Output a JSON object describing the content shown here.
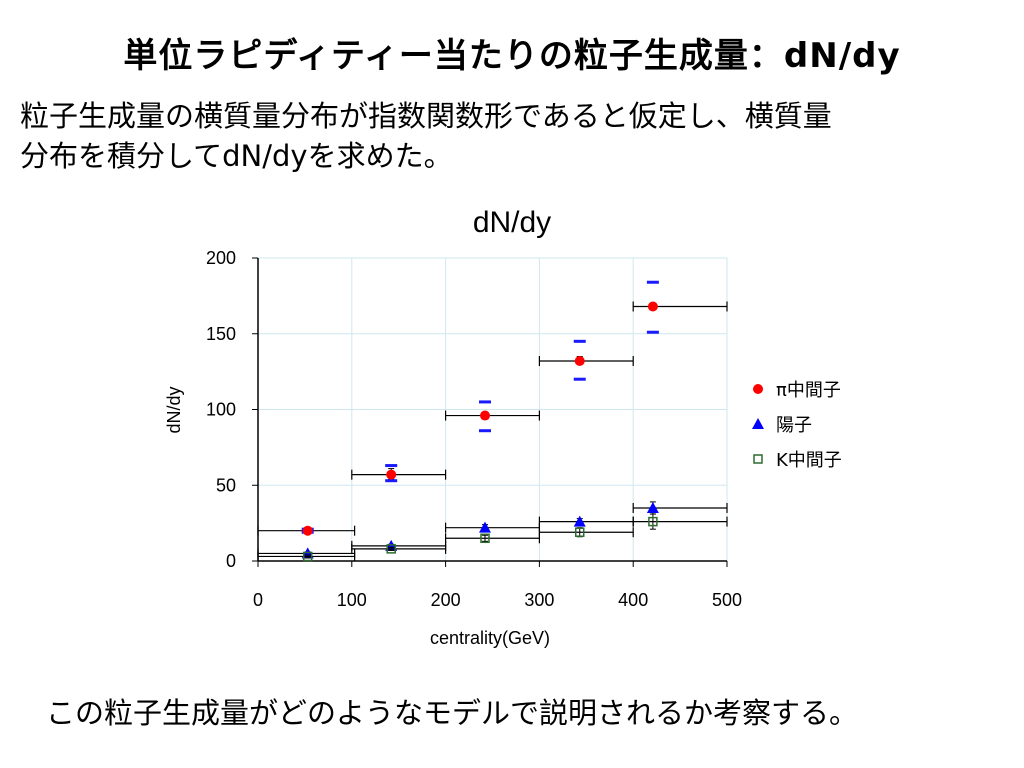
{
  "slide": {
    "title": "単位ラピディティー当たりの粒子生成量：dN/dy",
    "intro_line1": "粒子生成量の横質量分布が指数関数形であると仮定し、横質量",
    "intro_line2": "分布を積分してdN/dyを求めた。",
    "footer": "この粒子生成量がどのようなモデルで説明されるか考察する。"
  },
  "chart_data": {
    "type": "scatter",
    "title": "dN/dy",
    "xlabel": "centrality(GeV)",
    "ylabel": "dN/dy",
    "xlim": [
      0,
      500
    ],
    "ylim": [
      0,
      200
    ],
    "xticks": [
      "0",
      "100",
      "200",
      "300",
      "400",
      "500"
    ],
    "yticks": [
      "0",
      "50",
      "100",
      "150",
      "200"
    ],
    "grid": true,
    "legend_position": "right",
    "series": [
      {
        "name": "π中間子",
        "marker": "circle",
        "color": "#ff0000",
        "points": [
          {
            "x": 53,
            "y": 20,
            "xerr": [
              0,
              103
            ],
            "yerr": [
              19,
              21
            ],
            "sys_err": [
              19,
              21
            ]
          },
          {
            "x": 142,
            "y": 57,
            "xerr": [
              100,
              200
            ],
            "yerr": [
              54,
              61
            ],
            "sys_err": [
              53,
              63
            ]
          },
          {
            "x": 242,
            "y": 96,
            "xerr": [
              200,
              300
            ],
            "yerr": [
              94,
              98
            ],
            "sys_err": [
              86,
              105
            ]
          },
          {
            "x": 343,
            "y": 132,
            "xerr": [
              300,
              400
            ],
            "yerr": [
              130,
              135
            ],
            "sys_err": [
              120,
              145
            ]
          },
          {
            "x": 421,
            "y": 168,
            "xerr": [
              400,
              500
            ],
            "yerr": [
              166,
              170
            ],
            "sys_err": [
              151,
              184
            ]
          }
        ]
      },
      {
        "name": "陽子",
        "marker": "triangle",
        "color": "#0000ff",
        "points": [
          {
            "x": 53,
            "y": 5,
            "xerr": [
              0,
              103
            ],
            "yerr": [
              4,
              6
            ]
          },
          {
            "x": 142,
            "y": 10,
            "xerr": [
              100,
              200
            ],
            "yerr": [
              9,
              11
            ]
          },
          {
            "x": 242,
            "y": 22,
            "xerr": [
              200,
              300
            ],
            "yerr": [
              20,
              24
            ]
          },
          {
            "x": 343,
            "y": 26,
            "xerr": [
              300,
              400
            ],
            "yerr": [
              24,
              28
            ]
          },
          {
            "x": 421,
            "y": 35,
            "xerr": [
              400,
              500
            ],
            "yerr": [
              31,
              39
            ]
          }
        ]
      },
      {
        "name": "K中間子",
        "marker": "square-open",
        "color": "#2e6b2e",
        "points": [
          {
            "x": 53,
            "y": 3,
            "xerr": [
              0,
              103
            ],
            "yerr": [
              2,
              4
            ]
          },
          {
            "x": 142,
            "y": 8,
            "xerr": [
              100,
              200
            ],
            "yerr": [
              7,
              9
            ]
          },
          {
            "x": 242,
            "y": 15,
            "xerr": [
              200,
              300
            ],
            "yerr": [
              13,
              17
            ]
          },
          {
            "x": 343,
            "y": 19,
            "xerr": [
              300,
              400
            ],
            "yerr": [
              16,
              22
            ]
          },
          {
            "x": 421,
            "y": 26,
            "xerr": [
              400,
              500
            ],
            "yerr": [
              21,
              31
            ]
          }
        ]
      }
    ]
  }
}
